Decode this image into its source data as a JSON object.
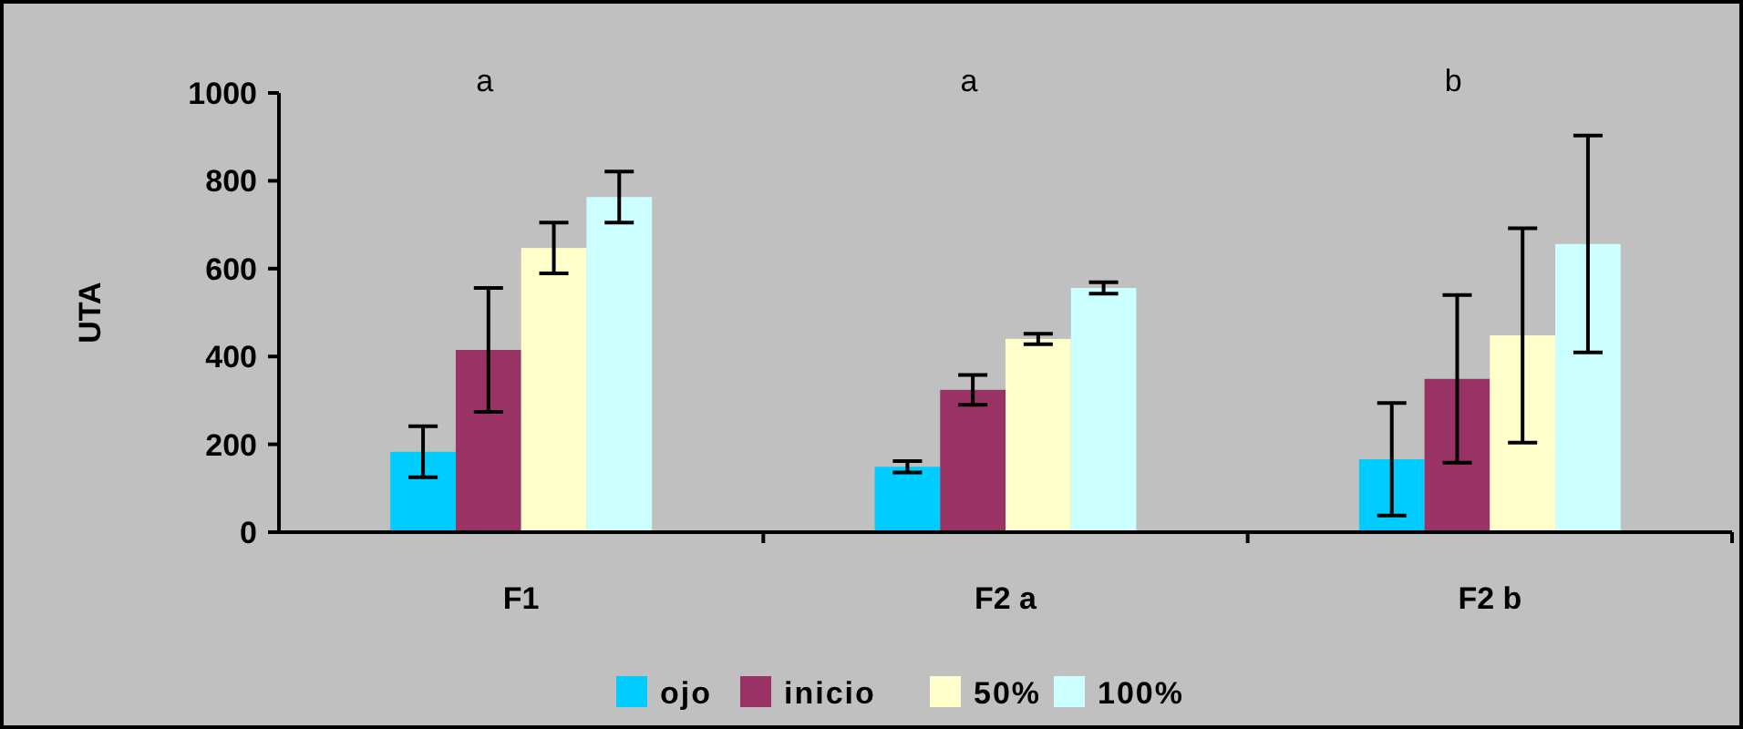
{
  "chart_data": {
    "type": "bar",
    "ylabel": "UTA",
    "categories": [
      "F1",
      "F2 a",
      "F2 b"
    ],
    "series": [
      {
        "name": "ojo",
        "color": "#00ccff",
        "values": [
          183,
          149,
          166
        ],
        "errors": [
          58,
          13,
          128
        ]
      },
      {
        "name": "inicio",
        "color": "#993366",
        "values": [
          415,
          324,
          349
        ],
        "errors": [
          141,
          34,
          191
        ]
      },
      {
        "name": "50%",
        "color": "#ffffcc",
        "values": [
          647,
          440,
          448
        ],
        "errors": [
          58,
          12,
          244
        ]
      },
      {
        "name": "100%",
        "color": "#ccffff",
        "values": [
          763,
          556,
          656
        ],
        "errors": [
          58,
          13,
          247
        ]
      }
    ],
    "ylim": [
      0,
      1000
    ],
    "yticks": [
      0,
      200,
      400,
      600,
      800,
      1000
    ],
    "grid": false,
    "legend": "bottom",
    "annotations": [
      "a",
      "a",
      "b"
    ]
  }
}
